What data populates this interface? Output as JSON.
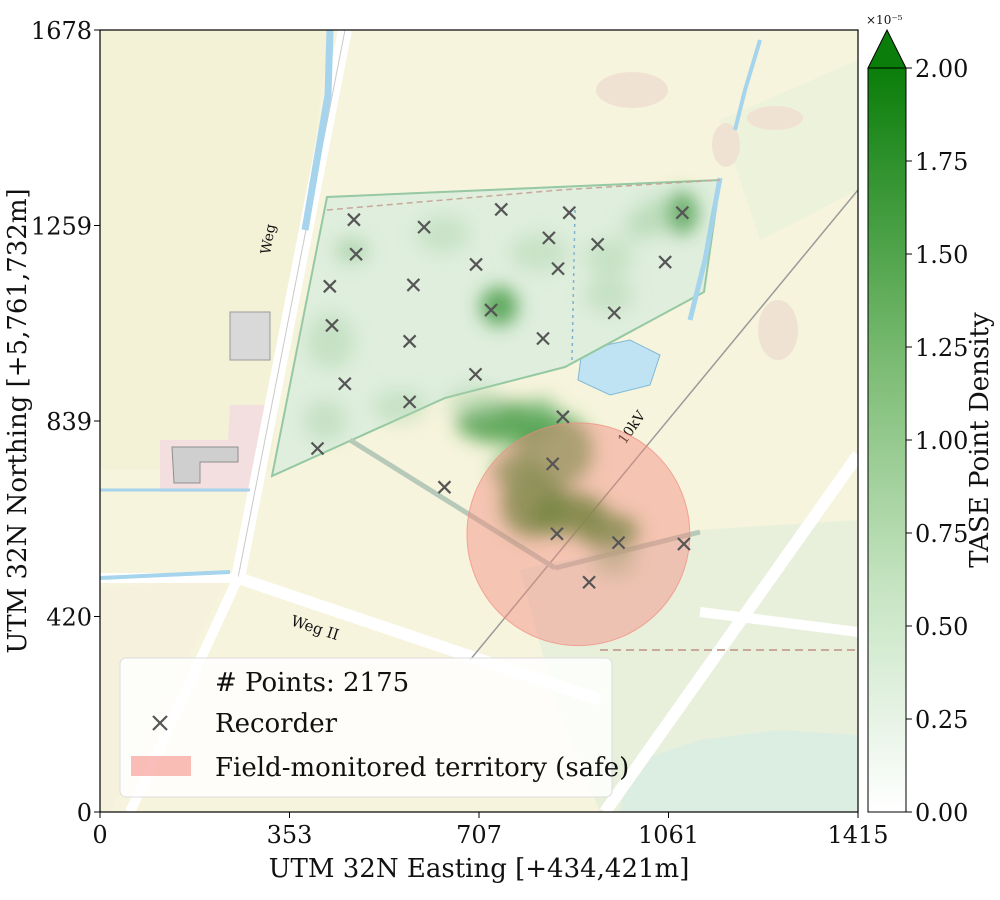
{
  "chart_data": {
    "type": "heatmap",
    "basemap": "topographic map",
    "xlabel": "UTM 32N Easting [+434,421m]",
    "ylabel": "UTM 32N Northing [+5,761,732m]",
    "xlim": [
      0,
      1415
    ],
    "ylim": [
      0,
      1678
    ],
    "xticks": [
      "0",
      "353",
      "707",
      "1061",
      "1415"
    ],
    "yticks": [
      "0",
      "420",
      "839",
      "1259",
      "1678"
    ],
    "colorbar": {
      "label": "TASE Point Density",
      "exponent": "×10⁻⁵",
      "range": [
        0,
        2.0
      ],
      "ticks": [
        "0.00",
        "0.25",
        "0.50",
        "0.75",
        "1.00",
        "1.25",
        "1.50",
        "1.75",
        "2.00"
      ],
      "color_low": "#ffffff",
      "color_high": "#0a7d0a",
      "extend": "max"
    },
    "legend": {
      "position": "lower-left",
      "count_text": "# Points: 2175",
      "recorder_label": "Recorder",
      "territory_label": "Field-monitored territory (safe)"
    },
    "territory": {
      "center": [
        893,
        596
      ],
      "radius": 208,
      "color": "#f4897f"
    },
    "recorders": [
      [
        474,
        1271
      ],
      [
        749,
        1293
      ],
      [
        876,
        1286
      ],
      [
        1087,
        1286
      ],
      [
        605,
        1255
      ],
      [
        838,
        1232
      ],
      [
        478,
        1197
      ],
      [
        929,
        1218
      ],
      [
        702,
        1175
      ],
      [
        855,
        1166
      ],
      [
        1055,
        1180
      ],
      [
        429,
        1128
      ],
      [
        585,
        1131
      ],
      [
        730,
        1077
      ],
      [
        960,
        1071
      ],
      [
        433,
        1044
      ],
      [
        578,
        1010
      ],
      [
        827,
        1016
      ],
      [
        701,
        939
      ],
      [
        457,
        919
      ],
      [
        578,
        880
      ],
      [
        406,
        780
      ],
      [
        864,
        848
      ],
      [
        845,
        747
      ],
      [
        643,
        697
      ],
      [
        853,
        597
      ],
      [
        968,
        578
      ],
      [
        1090,
        575
      ],
      [
        913,
        493
      ]
    ],
    "density": [
      {
        "x": 760,
        "y": 835,
        "rx": 95,
        "ry": 45,
        "v": 1.6
      },
      {
        "x": 850,
        "y": 775,
        "rx": 70,
        "ry": 80,
        "v": 1.5
      },
      {
        "x": 810,
        "y": 660,
        "rx": 60,
        "ry": 70,
        "v": 1.8
      },
      {
        "x": 875,
        "y": 640,
        "rx": 70,
        "ry": 45,
        "v": 1.9
      },
      {
        "x": 950,
        "y": 600,
        "rx": 55,
        "ry": 40,
        "v": 1.8
      },
      {
        "x": 780,
        "y": 730,
        "rx": 45,
        "ry": 40,
        "v": 1.6
      },
      {
        "x": 825,
        "y": 860,
        "rx": 30,
        "ry": 30,
        "v": 1.1
      },
      {
        "x": 745,
        "y": 1085,
        "rx": 35,
        "ry": 42,
        "v": 1.6
      },
      {
        "x": 1085,
        "y": 1285,
        "rx": 30,
        "ry": 45,
        "v": 1.6
      },
      {
        "x": 470,
        "y": 1205,
        "rx": 30,
        "ry": 25,
        "v": 0.9
      },
      {
        "x": 1040,
        "y": 1280,
        "rx": 40,
        "ry": 40,
        "v": 0.7
      },
      {
        "x": 1005,
        "y": 1255,
        "rx": 30,
        "ry": 30,
        "v": 0.5
      },
      {
        "x": 950,
        "y": 1110,
        "rx": 45,
        "ry": 40,
        "v": 0.4
      },
      {
        "x": 430,
        "y": 1010,
        "rx": 45,
        "ry": 60,
        "v": 0.35
      },
      {
        "x": 420,
        "y": 840,
        "rx": 40,
        "ry": 45,
        "v": 0.4
      },
      {
        "x": 560,
        "y": 870,
        "rx": 50,
        "ry": 35,
        "v": 0.35
      },
      {
        "x": 700,
        "y": 880,
        "rx": 55,
        "ry": 35,
        "v": 0.5
      },
      {
        "x": 950,
        "y": 1190,
        "rx": 45,
        "ry": 40,
        "v": 0.35
      },
      {
        "x": 640,
        "y": 1240,
        "rx": 50,
        "ry": 40,
        "v": 0.3
      },
      {
        "x": 820,
        "y": 1200,
        "rx": 55,
        "ry": 40,
        "v": 0.3
      },
      {
        "x": 960,
        "y": 540,
        "rx": 40,
        "ry": 35,
        "v": 0.9
      }
    ]
  }
}
